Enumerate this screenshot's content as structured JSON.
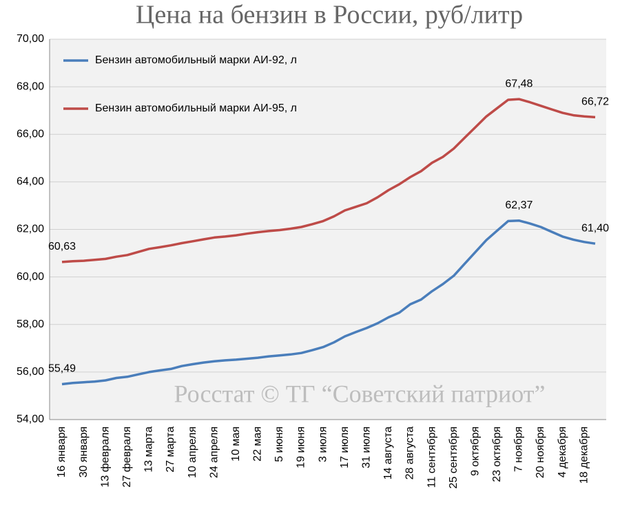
{
  "chart_data": {
    "type": "line",
    "title": "Цена на бензин в России, руб/литр",
    "watermark": "Росстат © ТГ “Советский патриот”",
    "categories": [
      "16 января",
      null,
      "30 января",
      null,
      "13 февраля",
      null,
      "27 февраля",
      null,
      "13 марта",
      null,
      "27 марта",
      null,
      "10 апреля",
      null,
      "24 апреля",
      null,
      "10 мая",
      null,
      "22 мая",
      null,
      "5 июня",
      null,
      "19 июня",
      null,
      "3 июля",
      null,
      "17 июля",
      null,
      "31 июля",
      null,
      "14 августа",
      null,
      "28 августа",
      null,
      "11 сентября",
      null,
      "25 сентября",
      null,
      "9 октября",
      null,
      "23 октября",
      null,
      "7 ноября",
      null,
      "20 ноября",
      null,
      "4 декабря",
      null,
      "18 декабря",
      null
    ],
    "series": [
      {
        "name": "Бензин автомобильный марки АИ-92, л",
        "color": "#4a7ebb",
        "values": [
          55.49,
          55.54,
          55.57,
          55.6,
          55.65,
          55.75,
          55.8,
          55.9,
          56.0,
          56.07,
          56.13,
          56.25,
          56.33,
          56.4,
          56.45,
          56.49,
          56.52,
          56.56,
          56.6,
          56.66,
          56.7,
          56.74,
          56.8,
          56.92,
          57.05,
          57.25,
          57.5,
          57.68,
          57.85,
          58.05,
          58.3,
          58.5,
          58.85,
          59.05,
          59.4,
          59.7,
          60.05,
          60.55,
          61.05,
          61.55,
          61.95,
          62.35,
          62.37,
          62.25,
          62.1,
          61.9,
          61.7,
          61.57,
          61.47,
          61.4
        ],
        "value_labels": [
          "55,49",
          null,
          null,
          null,
          null,
          null,
          null,
          null,
          null,
          null,
          null,
          null,
          null,
          null,
          null,
          null,
          null,
          null,
          null,
          null,
          null,
          null,
          null,
          null,
          null,
          null,
          null,
          null,
          null,
          null,
          null,
          null,
          null,
          null,
          null,
          null,
          null,
          null,
          null,
          null,
          null,
          null,
          "62,37",
          null,
          null,
          null,
          null,
          null,
          null,
          "61,40"
        ]
      },
      {
        "name": "Бензин автомобильный марки АИ-95, л",
        "color": "#be4b48",
        "values": [
          60.63,
          60.66,
          60.68,
          60.72,
          60.76,
          60.85,
          60.92,
          61.05,
          61.18,
          61.25,
          61.33,
          61.42,
          61.5,
          61.58,
          61.66,
          61.7,
          61.75,
          61.82,
          61.88,
          61.93,
          61.97,
          62.03,
          62.1,
          62.22,
          62.35,
          62.55,
          62.8,
          62.95,
          63.1,
          63.35,
          63.65,
          63.9,
          64.2,
          64.45,
          64.8,
          65.05,
          65.4,
          65.85,
          66.3,
          66.75,
          67.1,
          67.45,
          67.48,
          67.35,
          67.2,
          67.05,
          66.9,
          66.8,
          66.75,
          66.72
        ],
        "value_labels": [
          "60,63",
          null,
          null,
          null,
          null,
          null,
          null,
          null,
          null,
          null,
          null,
          null,
          null,
          null,
          null,
          null,
          null,
          null,
          null,
          null,
          null,
          null,
          null,
          null,
          null,
          null,
          null,
          null,
          null,
          null,
          null,
          null,
          null,
          null,
          null,
          null,
          null,
          null,
          null,
          null,
          null,
          null,
          "67,48",
          null,
          null,
          null,
          null,
          null,
          null,
          "66,72"
        ]
      }
    ],
    "ylim": [
      54,
      70
    ],
    "yticks": [
      {
        "value": 54,
        "label": "54,00"
      },
      {
        "value": 56,
        "label": "56,00"
      },
      {
        "value": 58,
        "label": "58,00"
      },
      {
        "value": 60,
        "label": "60,00"
      },
      {
        "value": 62,
        "label": "62,00"
      },
      {
        "value": 64,
        "label": "64,00"
      },
      {
        "value": 66,
        "label": "66,00"
      },
      {
        "value": 68,
        "label": "68,00"
      },
      {
        "value": 70,
        "label": "70,00"
      }
    ],
    "grid": true,
    "legend": "top-left"
  }
}
